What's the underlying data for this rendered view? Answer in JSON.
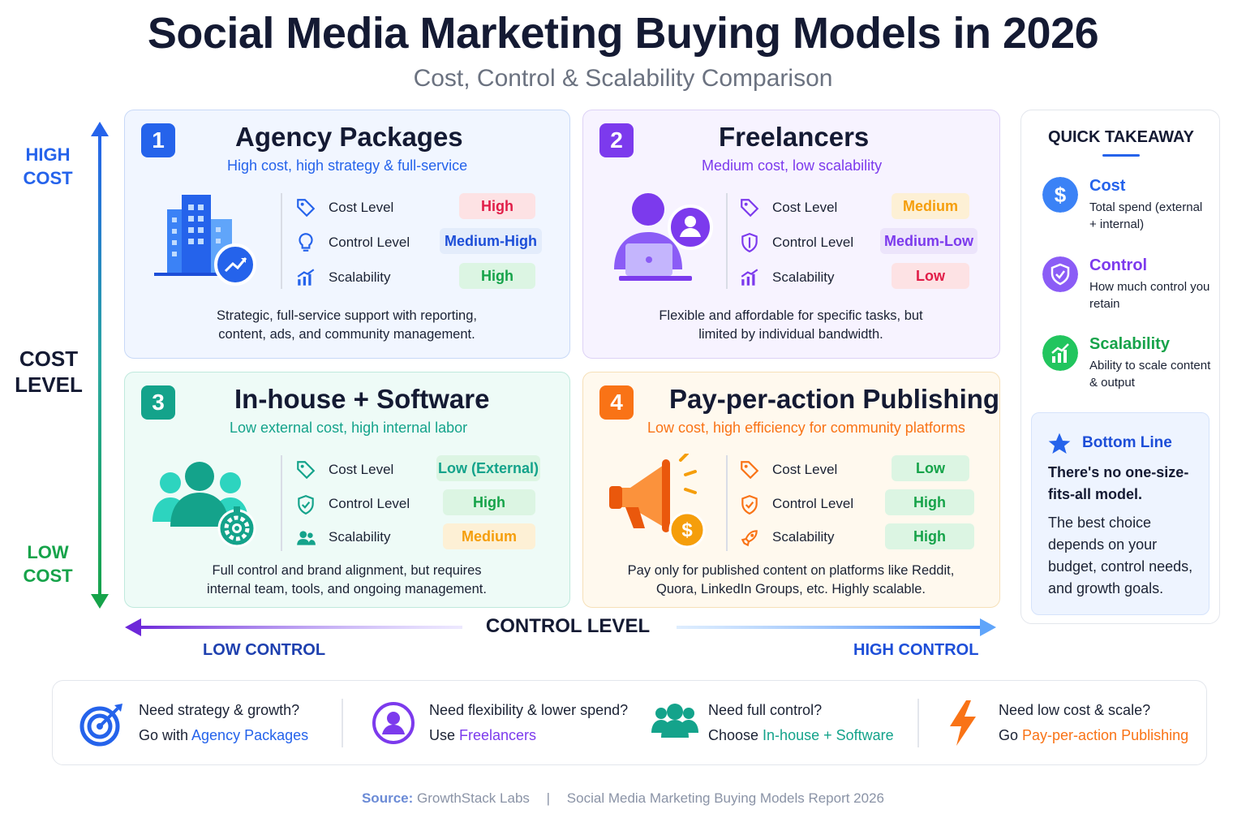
{
  "header": {
    "title": "Social Media Marketing Buying Models in 2026",
    "subtitle": "Cost, Control & Scalability Comparison"
  },
  "axes": {
    "cost_high": "HIGH COST",
    "cost_title": "COST LEVEL",
    "cost_low": "LOW COST",
    "control_title": "CONTROL LEVEL",
    "control_low": "LOW CONTROL",
    "control_high": "HIGH CONTROL"
  },
  "models": [
    {
      "number": "1",
      "title": "Agency Packages",
      "subtitle": "High cost, high strategy & full-service",
      "metrics": [
        {
          "label": "Cost Level",
          "value": "High",
          "icon": "tag-icon"
        },
        {
          "label": "Control Level",
          "value": "Medium-High",
          "icon": "lightbulb-icon"
        },
        {
          "label": "Scalability",
          "value": "High",
          "icon": "bar-chart-icon"
        }
      ],
      "description": "Strategic, full-service support with reporting, content, ads, and community management.",
      "accent": "#2563eb",
      "illustration": "office-building-icon"
    },
    {
      "number": "2",
      "title": "Freelancers",
      "subtitle": "Medium cost, low scalability",
      "metrics": [
        {
          "label": "Cost Level",
          "value": "Medium",
          "icon": "tag-icon"
        },
        {
          "label": "Control Level",
          "value": "Medium-Low",
          "icon": "shield-icon"
        },
        {
          "label": "Scalability",
          "value": "Low",
          "icon": "bar-chart-icon"
        }
      ],
      "description": "Flexible and affordable for specific tasks, but limited by individual bandwidth.",
      "accent": "#7c3aed",
      "illustration": "person-laptop-icon"
    },
    {
      "number": "3",
      "title": "In-house + Software",
      "subtitle": "Low external cost, high internal labor",
      "metrics": [
        {
          "label": "Cost Level",
          "value": "Low (External)",
          "icon": "tag-icon"
        },
        {
          "label": "Control Level",
          "value": "High",
          "icon": "shield-check-icon"
        },
        {
          "label": "Scalability",
          "value": "Medium",
          "icon": "people-icon"
        }
      ],
      "description": "Full control and brand alignment, but requires internal team, tools, and ongoing management.",
      "accent": "#14a38b",
      "illustration": "team-gear-icon"
    },
    {
      "number": "4",
      "title": "Pay-per-action Publishing",
      "subtitle": "Low cost, high efficiency for community platforms",
      "metrics": [
        {
          "label": "Cost Level",
          "value": "Low",
          "icon": "tag-icon"
        },
        {
          "label": "Control Level",
          "value": "High",
          "icon": "shield-check-icon"
        },
        {
          "label": "Scalability",
          "value": "High",
          "icon": "rocket-icon"
        }
      ],
      "description": "Pay only for published content on platforms like Reddit, Quora, LinkedIn Groups, etc. Highly scalable.",
      "accent": "#f97316",
      "illustration": "megaphone-dollar-icon"
    }
  ],
  "takeaway": {
    "title": "QUICK TAKEAWAY",
    "items": [
      {
        "head": "Cost",
        "text": "Total spend (external + internal)",
        "icon": "dollar-icon",
        "color": "#2563eb"
      },
      {
        "head": "Control",
        "text": "How much control you retain",
        "icon": "shield-icon",
        "color": "#7c3aed"
      },
      {
        "head": "Scalability",
        "text": "Ability to scale content & output",
        "icon": "growth-chart-icon",
        "color": "#16a34a"
      }
    ],
    "bottom_line": {
      "head": "Bottom Line",
      "strong": "There's no one-size-fits-all model.",
      "text": "The best choice depends on your budget, control needs, and growth goals."
    }
  },
  "guide": [
    {
      "q": "Need strategy & growth?",
      "prefix": "Go with ",
      "choice": "Agency Packages",
      "color": "#2563eb",
      "icon": "target-icon"
    },
    {
      "q": "Need flexibility & lower spend?",
      "prefix": "Use ",
      "choice": "Freelancers",
      "color": "#7c3aed",
      "icon": "user-circle-icon"
    },
    {
      "q": "Need full control?",
      "prefix": "Choose ",
      "choice": "In-house + Software",
      "color": "#14a38b",
      "icon": "team-icon"
    },
    {
      "q": "Need low cost & scale?",
      "prefix": "Go ",
      "choice": "Pay-per-action Publishing",
      "color": "#f97316",
      "icon": "lightning-icon"
    }
  ],
  "source": {
    "label": "Source:",
    "name": "GrowthStack Labs",
    "separator": "|",
    "report": "Social Media Marketing Buying Models Report 2026"
  }
}
